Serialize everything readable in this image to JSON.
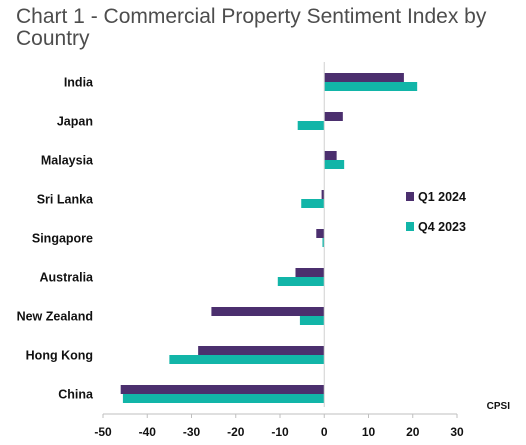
{
  "chart_data": {
    "type": "bar",
    "orientation": "horizontal",
    "title": "Chart 1 - Commercial Property Sentiment Index by Country",
    "categories": [
      "India",
      "Japan",
      "Malaysia",
      "Sri Lanka",
      "Singapore",
      "Australia",
      "New Zealand",
      "Hong Kong",
      "China"
    ],
    "series": [
      {
        "name": "Q1 2024",
        "color": "#4b2f6e",
        "values": [
          18,
          4.2,
          2.8,
          -0.6,
          -1.8,
          -6.5,
          -25.5,
          -28.5,
          -46
        ]
      },
      {
        "name": "Q4 2023",
        "color": "#12b5a8",
        "values": [
          21,
          -6,
          4.5,
          -5.2,
          -0.4,
          -10.5,
          -5.5,
          -35,
          -45.5
        ]
      }
    ],
    "xlim": [
      -50,
      30
    ],
    "xticks": [
      -50,
      -40,
      -30,
      -20,
      -10,
      0,
      10,
      20,
      30
    ],
    "xlabel": "CPSI",
    "ylabel": "",
    "grid": false,
    "legend_position": "right"
  }
}
